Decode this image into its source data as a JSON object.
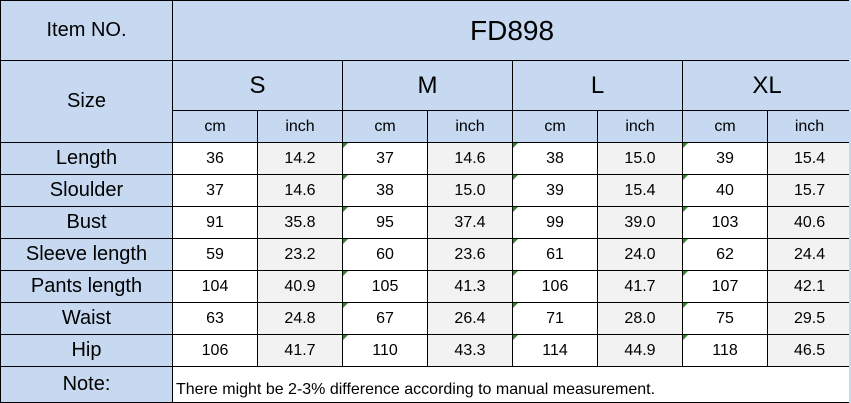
{
  "item_label": "Item NO.",
  "item_no": "FD898",
  "size_label": "Size",
  "sizes": [
    "S",
    "M",
    "L",
    "XL"
  ],
  "units": [
    "cm",
    "inch",
    "cm",
    "inch",
    "cm",
    "inch",
    "cm",
    "inch"
  ],
  "rows": [
    {
      "label": "Length",
      "values": [
        "36",
        "14.2",
        "37",
        "14.6",
        "38",
        "15.0",
        "39",
        "15.4"
      ]
    },
    {
      "label": "Sloulder",
      "values": [
        "37",
        "14.6",
        "38",
        "15.0",
        "39",
        "15.4",
        "40",
        "15.7"
      ]
    },
    {
      "label": "Bust",
      "values": [
        "91",
        "35.8",
        "95",
        "37.4",
        "99",
        "39.0",
        "103",
        "40.6"
      ]
    },
    {
      "label": "Sleeve length",
      "values": [
        "59",
        "23.2",
        "60",
        "23.6",
        "61",
        "24.0",
        "62",
        "24.4"
      ]
    },
    {
      "label": "Pants  length",
      "values": [
        "104",
        "40.9",
        "105",
        "41.3",
        "106",
        "41.7",
        "107",
        "42.1"
      ]
    },
    {
      "label": "Waist",
      "values": [
        "63",
        "24.8",
        "67",
        "26.4",
        "71",
        "28.0",
        "75",
        "29.5"
      ]
    },
    {
      "label": "Hip",
      "values": [
        "106",
        "41.7",
        "110",
        "43.3",
        "114",
        "44.9",
        "118",
        "46.5"
      ]
    }
  ],
  "note_label": "Note:",
  "note_text": "There might be 2-3% difference according to manual measurement.",
  "colors": {
    "header_bg": "#c6d9f1",
    "alt_col_bg": "#f2f2f2",
    "marker": "#2e8b2e"
  }
}
